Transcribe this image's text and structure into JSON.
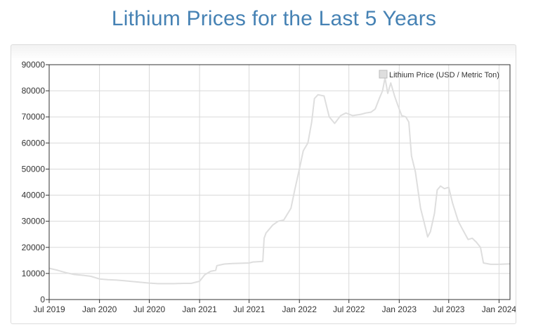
{
  "page": {
    "title": "Lithium Prices for the Last 5 Years"
  },
  "colors": {
    "title": "#4682b4",
    "series_line": "#dedede",
    "grid": "#d9d9d9",
    "axis": "#333333"
  },
  "chart_data": {
    "type": "line",
    "title": "",
    "xlabel": "",
    "ylabel": "",
    "ylim": [
      0,
      90000
    ],
    "xlim": [
      "2019-07-01",
      "2024-02-10"
    ],
    "grid": true,
    "legend_position": "top-right",
    "y_ticks": [
      0,
      10000,
      20000,
      30000,
      40000,
      50000,
      60000,
      70000,
      80000,
      90000
    ],
    "x_ticks": [
      {
        "date": "2019-07-01",
        "label": "Jul 2019"
      },
      {
        "date": "2020-01-01",
        "label": "Jan 2020"
      },
      {
        "date": "2020-07-01",
        "label": "Jul 2020"
      },
      {
        "date": "2021-01-01",
        "label": "Jan 2021"
      },
      {
        "date": "2021-07-01",
        "label": "Jul 2021"
      },
      {
        "date": "2022-01-01",
        "label": "Jan 2022"
      },
      {
        "date": "2022-07-01",
        "label": "Jul 2022"
      },
      {
        "date": "2023-01-01",
        "label": "Jan 2023"
      },
      {
        "date": "2023-07-01",
        "label": "Jul 2023"
      },
      {
        "date": "2024-01-01",
        "label": "Jan 2024"
      }
    ],
    "series": [
      {
        "name": "Lithium Price (USD / Metric Ton)",
        "points": [
          [
            "2019-07-01",
            12000
          ],
          [
            "2019-08-01",
            11200
          ],
          [
            "2019-09-01",
            10300
          ],
          [
            "2019-10-01",
            9600
          ],
          [
            "2019-11-01",
            9300
          ],
          [
            "2019-12-01",
            8900
          ],
          [
            "2020-01-01",
            7900
          ],
          [
            "2020-02-01",
            7600
          ],
          [
            "2020-03-01",
            7500
          ],
          [
            "2020-04-01",
            7200
          ],
          [
            "2020-05-01",
            6900
          ],
          [
            "2020-06-01",
            6600
          ],
          [
            "2020-07-01",
            6300
          ],
          [
            "2020-08-01",
            6100
          ],
          [
            "2020-09-01",
            6100
          ],
          [
            "2020-10-01",
            6100
          ],
          [
            "2020-11-01",
            6200
          ],
          [
            "2020-12-01",
            6200
          ],
          [
            "2021-01-01",
            7000
          ],
          [
            "2021-01-20",
            9500
          ],
          [
            "2021-02-10",
            10800
          ],
          [
            "2021-03-01",
            11200
          ],
          [
            "2021-03-05",
            13000
          ],
          [
            "2021-04-01",
            13600
          ],
          [
            "2021-05-01",
            13800
          ],
          [
            "2021-06-01",
            13900
          ],
          [
            "2021-07-01",
            14000
          ],
          [
            "2021-07-15",
            14400
          ],
          [
            "2021-08-20",
            14600
          ],
          [
            "2021-08-25",
            23500
          ],
          [
            "2021-09-01",
            25500
          ],
          [
            "2021-09-25",
            28500
          ],
          [
            "2021-10-15",
            30000
          ],
          [
            "2021-11-05",
            30500
          ],
          [
            "2021-12-01",
            35000
          ],
          [
            "2021-12-15",
            42000
          ],
          [
            "2022-01-01",
            50000
          ],
          [
            "2022-01-15",
            57000
          ],
          [
            "2022-02-01",
            60000
          ],
          [
            "2022-02-15",
            68000
          ],
          [
            "2022-02-25",
            77000
          ],
          [
            "2022-03-10",
            78500
          ],
          [
            "2022-04-01",
            78000
          ],
          [
            "2022-04-20",
            70000
          ],
          [
            "2022-05-10",
            67500
          ],
          [
            "2022-06-01",
            70500
          ],
          [
            "2022-06-20",
            71500
          ],
          [
            "2022-07-15",
            70500
          ],
          [
            "2022-08-15",
            71000
          ],
          [
            "2022-09-01",
            71500
          ],
          [
            "2022-09-20",
            71800
          ],
          [
            "2022-10-05",
            73000
          ],
          [
            "2022-10-20",
            77000
          ],
          [
            "2022-11-01",
            80000
          ],
          [
            "2022-11-10",
            85000
          ],
          [
            "2022-11-20",
            79000
          ],
          [
            "2022-12-01",
            83000
          ],
          [
            "2022-12-15",
            78000
          ],
          [
            "2022-12-25",
            75000
          ],
          [
            "2023-01-10",
            70500
          ],
          [
            "2023-01-25",
            70000
          ],
          [
            "2023-02-05",
            68000
          ],
          [
            "2023-02-15",
            55000
          ],
          [
            "2023-03-01",
            49000
          ],
          [
            "2023-03-20",
            35000
          ],
          [
            "2023-04-01",
            30000
          ],
          [
            "2023-04-15",
            24000
          ],
          [
            "2023-04-25",
            26000
          ],
          [
            "2023-05-10",
            33000
          ],
          [
            "2023-05-20",
            42000
          ],
          [
            "2023-06-01",
            43500
          ],
          [
            "2023-06-15",
            42500
          ],
          [
            "2023-07-01",
            43000
          ],
          [
            "2023-07-15",
            37000
          ],
          [
            "2023-08-05",
            30000
          ],
          [
            "2023-08-20",
            27000
          ],
          [
            "2023-09-10",
            23000
          ],
          [
            "2023-09-25",
            23500
          ],
          [
            "2023-10-10",
            22000
          ],
          [
            "2023-10-25",
            20000
          ],
          [
            "2023-11-05",
            14000
          ],
          [
            "2023-12-01",
            13500
          ],
          [
            "2024-01-01",
            13500
          ],
          [
            "2024-02-10",
            13700
          ]
        ]
      }
    ]
  }
}
